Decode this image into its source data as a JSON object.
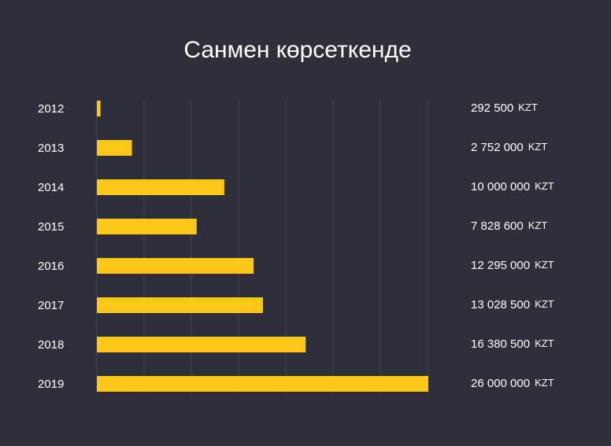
{
  "chart_data": {
    "type": "bar",
    "orientation": "horizontal",
    "title": "Санмен көрсеткенде",
    "categories": [
      "2012",
      "2013",
      "2014",
      "2015",
      "2016",
      "2017",
      "2018",
      "2019"
    ],
    "values": [
      292500,
      2752000,
      10000000,
      7828600,
      12295000,
      13028500,
      16380500,
      26000000
    ],
    "value_labels": [
      "292 500",
      "2 752 000",
      "10 000 000",
      "7 828 600",
      "12 295 000",
      "13 028 500",
      "16 380 500",
      "26 000 000"
    ],
    "unit": "KZT",
    "grid": true,
    "colors": {
      "background": "#2f2f3a",
      "bar": "#fdc71a",
      "grid": "#45454f",
      "text": "#ffffff"
    }
  }
}
